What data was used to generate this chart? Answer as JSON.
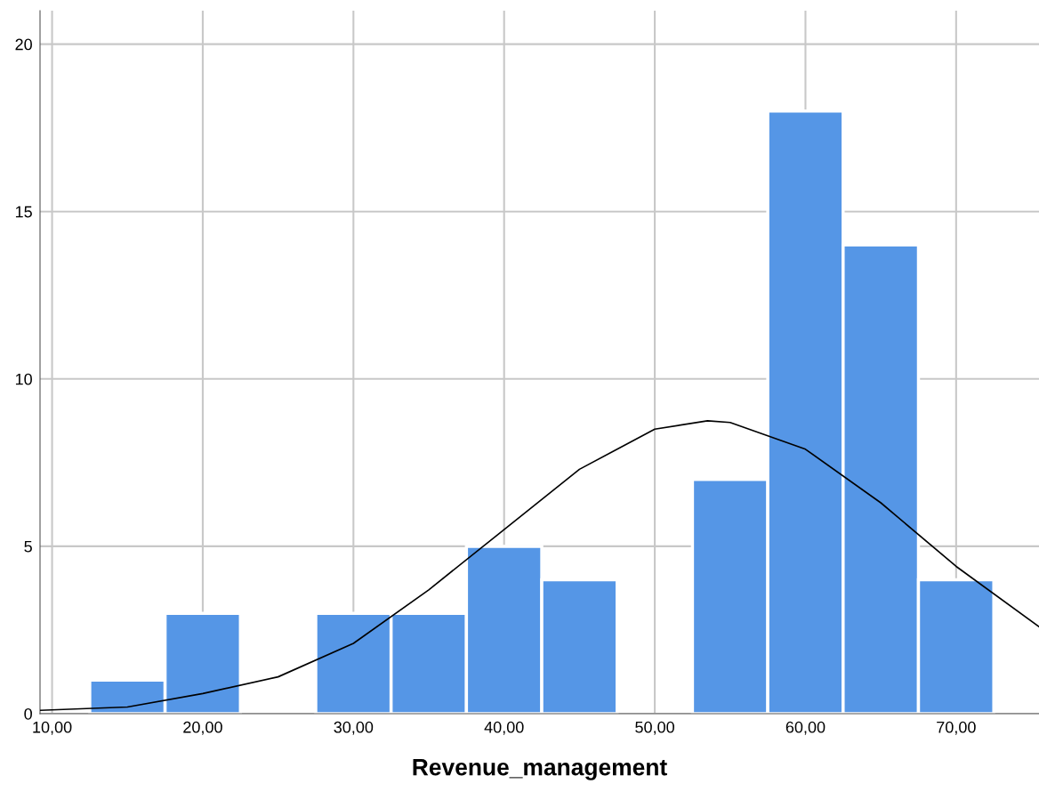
{
  "chart_data": {
    "type": "histogram",
    "xlabel": "Revenue_management",
    "bins": [
      12.5,
      17.5,
      22.5,
      27.5,
      32.5,
      37.5,
      42.5,
      47.5,
      52.5,
      57.5,
      62.5,
      67.5,
      72.5
    ],
    "values": [
      1,
      3,
      0,
      3,
      3,
      5,
      4,
      0,
      7,
      18,
      14,
      4
    ],
    "color": "#5596e6",
    "series": [
      {
        "type": "line",
        "color": "#000000",
        "x": [
          9.2,
          15,
          20,
          25,
          30,
          35,
          40,
          45,
          50,
          53.5,
          55,
          60,
          65,
          70,
          75.5
        ],
        "values": [
          0.1,
          0.2,
          0.6,
          1.1,
          2.1,
          3.7,
          5.5,
          7.3,
          8.5,
          8.75,
          8.7,
          7.9,
          6.3,
          4.4,
          2.6
        ]
      }
    ],
    "xlim": [
      9.2,
      75.5
    ],
    "xticks": [
      {
        "value": 10,
        "label": "10,00"
      },
      {
        "value": 20,
        "label": "20,00"
      },
      {
        "value": 30,
        "label": "30,00"
      },
      {
        "value": 40,
        "label": "40,00"
      },
      {
        "value": 50,
        "label": "50,00"
      },
      {
        "value": 60,
        "label": "60,00"
      },
      {
        "value": 70,
        "label": "70,00"
      }
    ],
    "ylim": [
      0,
      21
    ],
    "yticks": [
      0,
      5,
      10,
      15,
      20
    ],
    "grid": true
  }
}
